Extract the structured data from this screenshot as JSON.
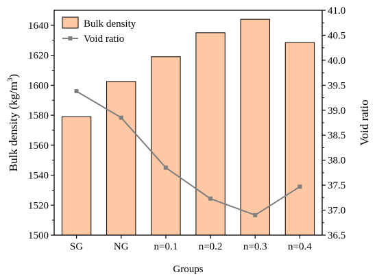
{
  "chart_data": {
    "type": "bar+line",
    "categories": [
      "SG",
      "NG",
      "n=0.1",
      "n=0.2",
      "n=0.3",
      "n=0.4"
    ],
    "series": [
      {
        "name": "Bulk density",
        "type": "bar",
        "axis": "left",
        "values": [
          1579,
          1602.5,
          1619,
          1635,
          1644,
          1628.5
        ],
        "color": "#FDC8A3",
        "stroke": "#000000"
      },
      {
        "name": "Void ratio",
        "type": "line",
        "axis": "right",
        "values": [
          39.38,
          38.85,
          37.85,
          37.23,
          36.9,
          37.47
        ],
        "color": "#7F7F7F",
        "marker": "square"
      }
    ],
    "xlabel": "Groups",
    "ylabel_left": {
      "main": "Bulk density (kg/m",
      "sup": "3",
      "tail": ")"
    },
    "ylabel_right": "Void ratio",
    "ylim_left": [
      1500,
      1650
    ],
    "yticks_left": [
      "1500",
      "1520",
      "1540",
      "1560",
      "1580",
      "1600",
      "1620",
      "1640"
    ],
    "ylim_right": [
      36.5,
      41.0
    ],
    "yticks_right": [
      "36.5",
      "37.0",
      "37.5",
      "38.0",
      "38.5",
      "39.0",
      "39.5",
      "40.0",
      "40.5",
      "41.0"
    ],
    "legend": {
      "placement": "top-left"
    },
    "grid": false
  }
}
